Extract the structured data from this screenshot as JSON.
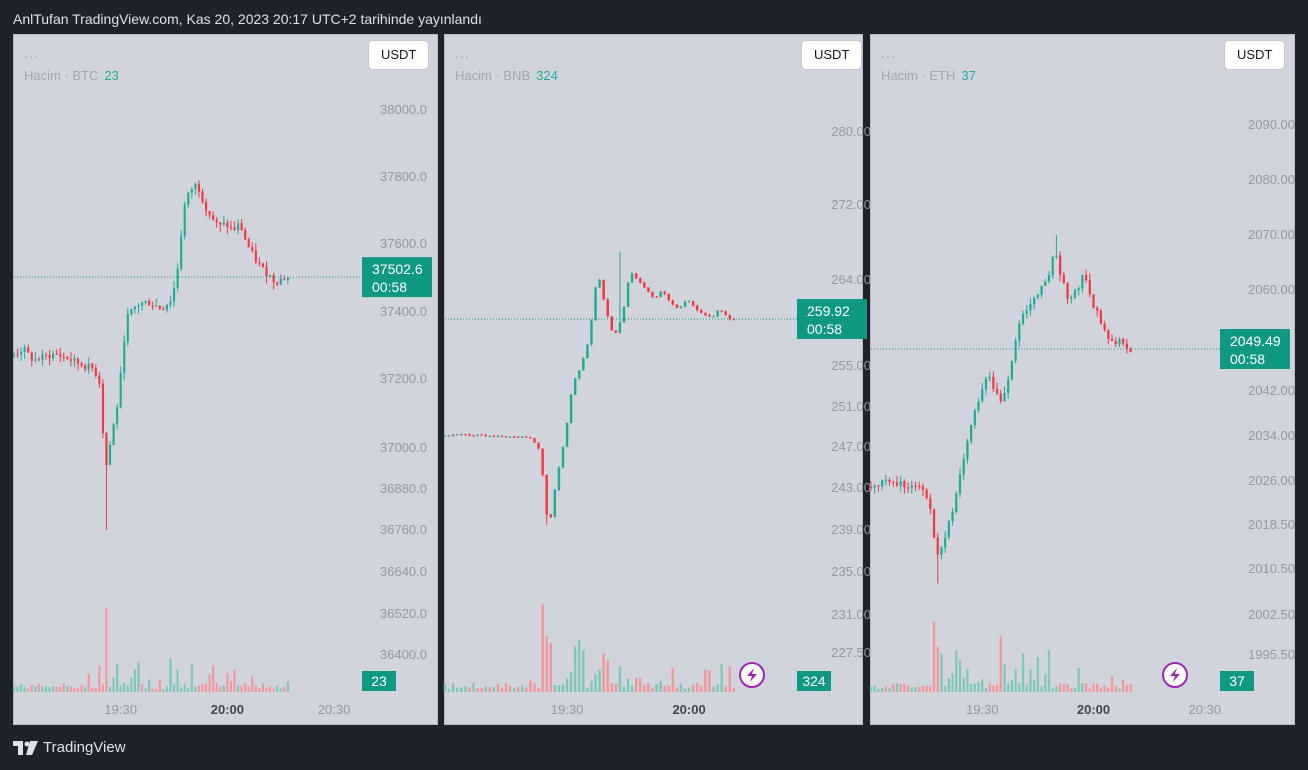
{
  "header": {
    "title": "AnlTufan TradingView.com, Kas 20, 2023 20:17 UTC+2 tarihinde yayınlandı"
  },
  "footer": {
    "brand": "TradingView"
  },
  "colors": {
    "up": "#22ab94",
    "down": "#f23645",
    "vol_up": "#7fc7bb",
    "vol_down": "#f0989d",
    "price_label": "#109981",
    "axis_text": "#9598a1",
    "bolt": "#9c27b0"
  },
  "panels": [
    {
      "dots": "...",
      "legend": {
        "label": "Hacim",
        "symbol": "BTC",
        "value": "23"
      },
      "currency_button": "USDT",
      "price_label": {
        "price": "37502.6",
        "countdown": "00:58"
      },
      "volume_label": "23",
      "has_bolt": false,
      "x_ticks": [
        {
          "t": 30,
          "label": "19:30",
          "bold": false
        },
        {
          "t": 60,
          "label": "20:00",
          "bold": true
        },
        {
          "t": 90,
          "label": "20:30",
          "bold": false
        }
      ]
    },
    {
      "dots": "...",
      "legend": {
        "label": "Hacim",
        "symbol": "BNB",
        "value": "324"
      },
      "currency_button": "USDT",
      "price_label": {
        "price": "259.92",
        "countdown": "00:58"
      },
      "volume_label": "324",
      "has_bolt": true,
      "x_ticks": [
        {
          "t": 30,
          "label": "19:30",
          "bold": false
        },
        {
          "t": 60,
          "label": "20:00",
          "bold": true
        }
      ]
    },
    {
      "dots": "...",
      "legend": {
        "label": "Hacim",
        "symbol": "ETH",
        "value": "37"
      },
      "currency_button": "USDT",
      "price_label": {
        "price": "2049.49",
        "countdown": "00:58"
      },
      "volume_label": "37",
      "has_bolt": true,
      "x_ticks": [
        {
          "t": 30,
          "label": "19:30",
          "bold": false
        },
        {
          "t": 60,
          "label": "20:00",
          "bold": true
        },
        {
          "t": 90,
          "label": "20:30",
          "bold": false
        }
      ]
    }
  ],
  "chart_data": [
    {
      "type": "candlestick",
      "symbol": "BTC/USDT",
      "last_price": 37502.6,
      "y_ticks": [
        {
          "v": 38000,
          "label": "38000.0"
        },
        {
          "v": 37800,
          "label": "37800.0"
        },
        {
          "v": 37600,
          "label": "37600.0"
        },
        {
          "v": 37400,
          "label": "37400.0"
        },
        {
          "v": 37200,
          "label": "37200.0"
        },
        {
          "v": 37000,
          "label": "37000.0"
        },
        {
          "v": 36880,
          "label": "36880.0"
        },
        {
          "v": 36760,
          "label": "36760.0"
        },
        {
          "v": 36640,
          "label": "36640.0"
        },
        {
          "v": 36520,
          "label": "36520.0"
        },
        {
          "v": 36400,
          "label": "36400.0"
        }
      ],
      "path": [
        [
          0,
          37270
        ],
        [
          3,
          37290
        ],
        [
          6,
          37255
        ],
        [
          12,
          37275
        ],
        [
          16,
          37260
        ],
        [
          19,
          37245
        ],
        [
          23,
          37230
        ],
        [
          25,
          37180
        ],
        [
          26,
          36920
        ],
        [
          28,
          37040
        ],
        [
          30,
          37150
        ],
        [
          32,
          37380
        ],
        [
          35,
          37420
        ],
        [
          38,
          37430
        ],
        [
          42,
          37410
        ],
        [
          45,
          37440
        ],
        [
          47,
          37560
        ],
        [
          48,
          37700
        ],
        [
          50,
          37760
        ],
        [
          52,
          37780
        ],
        [
          54,
          37720
        ],
        [
          56,
          37680
        ],
        [
          58,
          37650
        ],
        [
          60,
          37660
        ],
        [
          62,
          37640
        ],
        [
          64,
          37660
        ],
        [
          66,
          37600
        ],
        [
          68,
          37560
        ],
        [
          70,
          37530
        ],
        [
          72,
          37510
        ],
        [
          74,
          37490
        ],
        [
          77,
          37502
        ]
      ],
      "lows": [
        [
          26,
          36760
        ]
      ],
      "highs": [],
      "volume_spikes": [
        [
          26,
          2.4
        ],
        [
          29,
          0.8
        ],
        [
          35,
          0.85
        ],
        [
          44,
          0.95
        ],
        [
          50,
          0.8
        ]
      ]
    },
    {
      "type": "candlestick",
      "symbol": "BNB/USDT",
      "last_price": 259.92,
      "y_ticks": [
        {
          "v": 280,
          "label": "280.00"
        },
        {
          "v": 272,
          "label": "272.00"
        },
        {
          "v": 264,
          "label": "264.00"
        },
        {
          "v": 259.92,
          "label": ""
        },
        {
          "v": 255,
          "label": "255.00"
        },
        {
          "v": 251,
          "label": "251.00"
        },
        {
          "v": 247,
          "label": "247.00"
        },
        {
          "v": 243,
          "label": "243.00"
        },
        {
          "v": 239,
          "label": "239.00"
        },
        {
          "v": 235,
          "label": "235.00"
        },
        {
          "v": 231,
          "label": "231.00"
        },
        {
          "v": 227.5,
          "label": "227.50"
        }
      ],
      "path": [
        [
          0,
          248.1
        ],
        [
          4,
          248.3
        ],
        [
          8,
          248.2
        ],
        [
          12,
          248.1
        ],
        [
          16,
          248.0
        ],
        [
          20,
          248.0
        ],
        [
          22,
          247.8
        ],
        [
          24,
          246.5
        ],
        [
          25,
          242.0
        ],
        [
          26,
          239.0
        ],
        [
          28,
          244.0
        ],
        [
          30,
          248.0
        ],
        [
          32,
          253.5
        ],
        [
          34,
          255.0
        ],
        [
          36,
          258.0
        ],
        [
          38,
          265.0
        ],
        [
          40,
          261.0
        ],
        [
          42,
          258.0
        ],
        [
          44,
          260.0
        ],
        [
          46,
          265.0
        ],
        [
          48,
          264.0
        ],
        [
          50,
          263.0
        ],
        [
          52,
          262.0
        ],
        [
          54,
          263.0
        ],
        [
          56,
          261.5
        ],
        [
          58,
          261.0
        ],
        [
          60,
          262.0
        ],
        [
          62,
          261.0
        ],
        [
          64,
          260.5
        ],
        [
          66,
          260.0
        ],
        [
          68,
          261.0
        ],
        [
          70,
          260.0
        ],
        [
          71,
          259.92
        ]
      ],
      "lows": [
        [
          25,
          239.5
        ]
      ],
      "highs": [
        [
          43,
          267.0
        ]
      ],
      "volume_spikes": [
        [
          24,
          2.5
        ],
        [
          25,
          1.6
        ],
        [
          26,
          1.4
        ],
        [
          32,
          1.3
        ],
        [
          33,
          1.5
        ],
        [
          34,
          1.2
        ],
        [
          39,
          1.1
        ],
        [
          40,
          0.9
        ]
      ]
    },
    {
      "type": "candlestick",
      "symbol": "ETH/USDT",
      "last_price": 2049.49,
      "y_ticks": [
        {
          "v": 2090,
          "label": "2090.00"
        },
        {
          "v": 2080,
          "label": "2080.00"
        },
        {
          "v": 2070,
          "label": "2070.00"
        },
        {
          "v": 2060,
          "label": "2060.00"
        },
        {
          "v": 2049.49,
          "label": ""
        },
        {
          "v": 2042,
          "label": "2042.00"
        },
        {
          "v": 2034,
          "label": "2034.00"
        },
        {
          "v": 2026,
          "label": "2026.00"
        },
        {
          "v": 2018.5,
          "label": "2018.50"
        },
        {
          "v": 2010.5,
          "label": "2010.50"
        },
        {
          "v": 2002.5,
          "label": "2002.50"
        },
        {
          "v": 1995.5,
          "label": "1995.50"
        }
      ],
      "path": [
        [
          0,
          2025
        ],
        [
          4,
          2026
        ],
        [
          8,
          2025.5
        ],
        [
          12,
          2025
        ],
        [
          15,
          2024
        ],
        [
          17,
          2020
        ],
        [
          18,
          2012
        ],
        [
          20,
          2015
        ],
        [
          22,
          2020
        ],
        [
          24,
          2025
        ],
        [
          26,
          2032
        ],
        [
          28,
          2038
        ],
        [
          30,
          2041
        ],
        [
          32,
          2045
        ],
        [
          34,
          2042
        ],
        [
          36,
          2040
        ],
        [
          38,
          2046
        ],
        [
          40,
          2053
        ],
        [
          42,
          2056
        ],
        [
          44,
          2058
        ],
        [
          46,
          2060
        ],
        [
          48,
          2062
        ],
        [
          50,
          2067
        ],
        [
          52,
          2062
        ],
        [
          54,
          2058
        ],
        [
          56,
          2060
        ],
        [
          58,
          2063
        ],
        [
          60,
          2058
        ],
        [
          62,
          2055
        ],
        [
          64,
          2052
        ],
        [
          66,
          2050
        ],
        [
          68,
          2051
        ],
        [
          70,
          2049.49
        ]
      ],
      "lows": [
        [
          18,
          2008
        ]
      ],
      "highs": [
        [
          50,
          2070
        ]
      ],
      "volume_spikes": [
        [
          17,
          2.0
        ],
        [
          18,
          1.3
        ],
        [
          19,
          1.1
        ],
        [
          23,
          1.2
        ],
        [
          24,
          0.9
        ],
        [
          35,
          1.6
        ],
        [
          41,
          1.1
        ],
        [
          45,
          1.0
        ],
        [
          48,
          1.2
        ]
      ]
    }
  ]
}
